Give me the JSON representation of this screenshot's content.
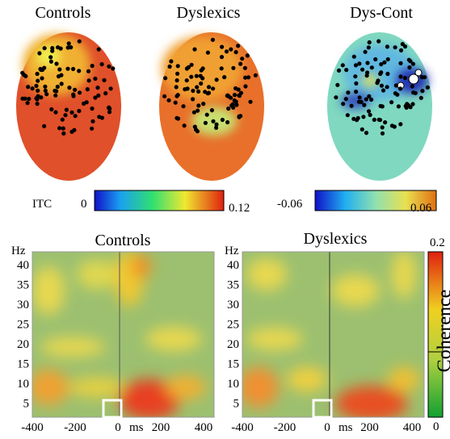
{
  "heads": [
    {
      "title": "Controls"
    },
    {
      "title": "Dyslexics"
    },
    {
      "title": "Dys-Cont"
    }
  ],
  "itc_colorbar": {
    "label": "ITC",
    "min": "0",
    "max": "0.12"
  },
  "diff_colorbar": {
    "min": "-0.06",
    "max": "0.06"
  },
  "panels": [
    {
      "title": "Controls"
    },
    {
      "title": "Dyslexics"
    }
  ],
  "y_axis": {
    "label": "Hz",
    "ticks": [
      "40",
      "35",
      "30",
      "25",
      "20",
      "15",
      "10",
      "5"
    ]
  },
  "x_axis": {
    "label": "ms",
    "ticks": [
      "-400",
      "-200",
      "0",
      "200",
      "400"
    ]
  },
  "coherence_colorbar": {
    "label": "Coherence",
    "max": "0.2",
    "min": "0"
  }
}
